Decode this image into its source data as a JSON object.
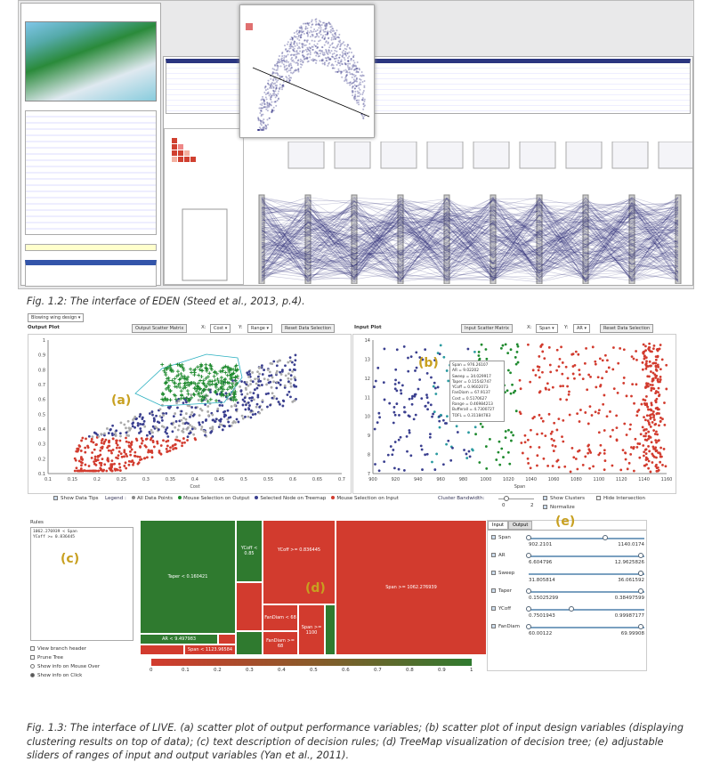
{
  "fig12": {
    "caption": "Fig. 1.2: The interface of EDEN (Steed et al., 2013, p.4)."
  },
  "fig13": {
    "caption_lines": [
      "Fig. 1.3: The interface of LIVE. (a) scatter plot of output performance variables; (b) scatter plot of input design variables (displaying",
      "clustering results on top of data); (c) text description of decision rules; (d) TreeMap visualization of decision tree; (e) adjustable",
      "sliders of ranges of input and output variables (Yan et al., 2011)."
    ],
    "dataset_select": "Blowing wing design",
    "output_plot": {
      "title": "Output Plot",
      "matrix_button": "Output Scatter Matrix",
      "x_label": "X:",
      "x_value": "Cost",
      "y_label": "Y:",
      "y_value": "Range",
      "reset_button": "Reset Data Selection",
      "tag": "(a)",
      "x_ticks": [
        "0.1",
        "0.15",
        "0.2",
        "0.25",
        "0.3",
        "0.35",
        "0.4",
        "0.45",
        "0.5",
        "0.55",
        "0.6",
        "0.65",
        "0.7"
      ],
      "y_ticks": [
        "1",
        "0.9",
        "0.8",
        "0.7",
        "0.6",
        "0.5",
        "0.4",
        "0.3",
        "0.2",
        "0.1"
      ],
      "x_axis": "Cost",
      "y_axis": "Range"
    },
    "input_plot": {
      "title": "Input Plot",
      "matrix_button": "Input Scatter Matrix",
      "x_label": "X:",
      "x_value": "Span",
      "y_label": "Y:",
      "y_value": "AR",
      "reset_button": "Reset Data Selection",
      "tag": "(b)",
      "x_ticks": [
        "900",
        "920",
        "940",
        "960",
        "980",
        "1000",
        "1020",
        "1040",
        "1060",
        "1080",
        "1100",
        "1120",
        "1140",
        "1160"
      ],
      "y_ticks": [
        "14",
        "13",
        "12",
        "11",
        "10",
        "9",
        "8",
        "7"
      ],
      "x_axis": "Span",
      "tooltip": [
        "Span = 976.26107",
        "AR = 9.02202",
        "Sweep = 34.029917",
        "Taper = 0.15542747",
        "YCoff = 0.9602073",
        "FanDiam = 67.9137",
        "Cost = 0.5170627",
        "Range = 0.46984213",
        "Bufferall = 4.7300727",
        "TOFL = 0.31184783"
      ]
    },
    "legend": {
      "show_tips": "Show Data Tips",
      "title": "Legend :",
      "items": [
        {
          "label": "All Data Points",
          "color": "#888888"
        },
        {
          "label": "Mouse Selection on Output",
          "color": "#1e8a2e"
        },
        {
          "label": "Selected Node on Treemap",
          "color": "#3a3f8f"
        },
        {
          "label": "Mouse Selection on Input",
          "color": "#d23b2e"
        }
      ],
      "bandwidth": "Cluster Bandwidth:",
      "bw_min": "0",
      "bw_max": "2",
      "show_clusters": "Show Clusters",
      "hide_intersection": "Hide Intersection",
      "normalize": "Normalize"
    },
    "rules": {
      "title": "Rules",
      "lines": [
        "1062.276939 < Span",
        "YCoff >= 0.836445"
      ],
      "tag": "(c)",
      "options": [
        "View branch header",
        "Prune Tree",
        "Show info on Mouse Over",
        "Show info on Click"
      ]
    },
    "treemap": {
      "tag": "(d)",
      "labels": {
        "taper": "Taper < 0.160421",
        "ar": "AR < 9.497983",
        "ycoff1": "YCoff < 0.85",
        "ycoff2": "YCoff >= 0.836445",
        "span_big": "Span >= 1062.276939",
        "span_small": "Span < 1123.96584",
        "fan1": "FanDiam < 68",
        "fan2": "FanDiam >= 68",
        "span3": "Span >= 1100"
      },
      "scale": [
        "0",
        "0.1",
        "0.2",
        "0.3",
        "0.4",
        "0.5",
        "0.6",
        "0.7",
        "0.8",
        "0.9",
        "1"
      ]
    },
    "sliders": {
      "tabs": [
        "Input",
        "Output"
      ],
      "tag": "(e)",
      "items": [
        {
          "name": "Span",
          "min": "902.2101",
          "max": "1140.0174",
          "lo": 0,
          "hi": 0.68
        },
        {
          "name": "AR",
          "min": "6.604796",
          "max": "12.9625826",
          "lo": 0,
          "hi": 1
        },
        {
          "name": "Sweep",
          "min": "31.805814",
          "max": "36.061592",
          "lo": 1,
          "hi": 1
        },
        {
          "name": "Taper",
          "min": "0.15025299",
          "max": "0.38497599",
          "lo": 0,
          "hi": 1
        },
        {
          "name": "YCoff",
          "min": "0.7501943",
          "max": "0.99987177",
          "lo": 0,
          "hi": 0.38
        },
        {
          "name": "FanDiam",
          "min": "60.00122",
          "max": "69.99908",
          "lo": 0,
          "hi": 1
        }
      ]
    }
  }
}
